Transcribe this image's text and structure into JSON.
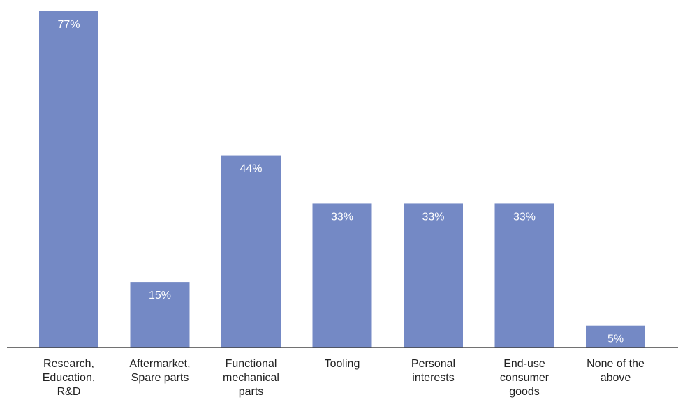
{
  "chart_data": {
    "type": "bar",
    "categories": [
      "Research,\nEducation,\nR&D",
      "Aftermarket,\nSpare parts",
      "Functional\nmechanical\nparts",
      "Tooling",
      "Personal\ninterests",
      "End-use\nconsumer\ngoods",
      "None of the\nabove"
    ],
    "values": [
      77,
      15,
      44,
      33,
      33,
      33,
      5
    ],
    "value_labels": [
      "77%",
      "15%",
      "44%",
      "33%",
      "33%",
      "33%",
      "5%"
    ],
    "title": "",
    "xlabel": "",
    "ylabel": "",
    "ylim": [
      0,
      77
    ],
    "grid": false,
    "legend": "none",
    "colors": {
      "bar": "#7489c5",
      "axis": "#444444",
      "value_text": "#ffffff",
      "category_text": "#222222"
    }
  }
}
